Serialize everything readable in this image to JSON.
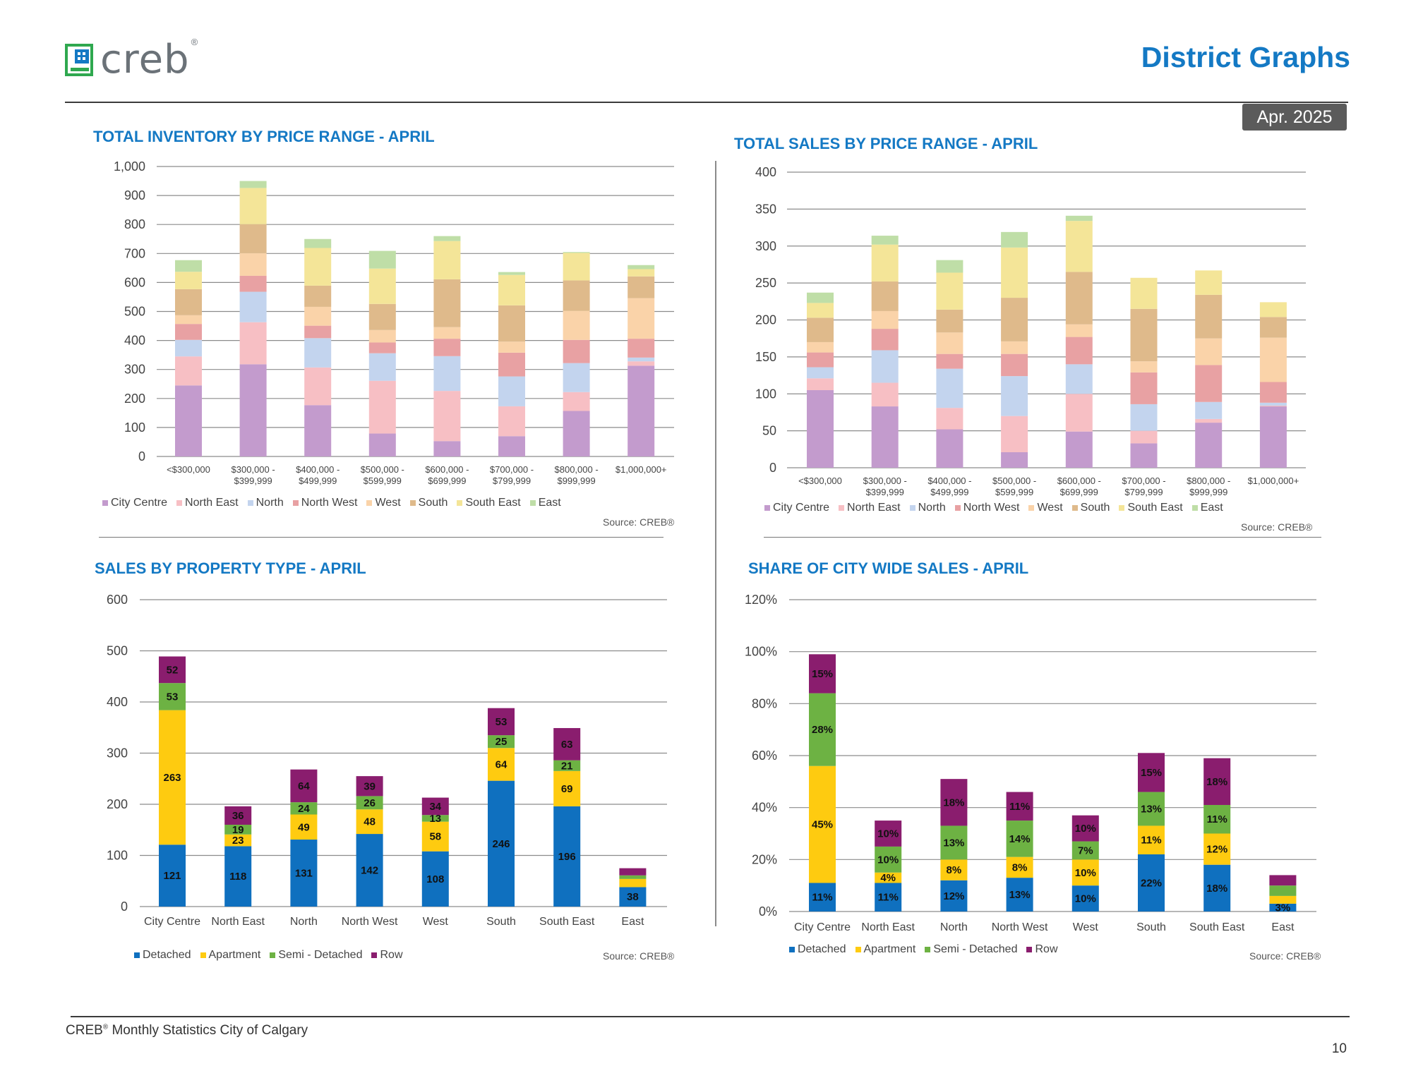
{
  "header": {
    "brand": "creb",
    "brand_mark": "®",
    "title": "District Graphs",
    "date_badge": "Apr. 2025"
  },
  "footer": {
    "text": "CREB",
    "reg": "®",
    "text_rest": " Monthly Statistics City of Calgary",
    "page_number": "10"
  },
  "colors": {
    "accent": "#1479c4",
    "city_centre": "#c39bcd",
    "north_east": "#f7bfc4",
    "north": "#c3d4ee",
    "north_west": "#e8a1a3",
    "west": "#fad3a9",
    "south": "#dfba8b",
    "south_east": "#f4e598",
    "east": "#bfdea7",
    "detached": "#0f70bf",
    "apartment": "#fecb10",
    "semi_detached": "#6db243",
    "row": "#8a1d6e"
  },
  "chart_data": [
    {
      "id": "inventory",
      "type": "bar",
      "stacked": true,
      "title": "TOTAL INVENTORY BY PRICE RANGE - APRIL",
      "source": "Source: CREB®",
      "ylim": [
        0,
        1000
      ],
      "yticks": [
        "0",
        "100",
        "200",
        "300",
        "400",
        "500",
        "600",
        "700",
        "800",
        "900",
        "1,000"
      ],
      "grid": true,
      "legend_position": "bottom",
      "categories": [
        [
          "<$300,000"
        ],
        [
          "$300,000 -",
          "$399,999"
        ],
        [
          "$400,000 -",
          "$499,999"
        ],
        [
          "$500,000 -",
          "$599,999"
        ],
        [
          "$600,000 -",
          "$699,999"
        ],
        [
          "$700,000 -",
          "$799,999"
        ],
        [
          "$800,000 -",
          "$999,999"
        ],
        [
          "$1,000,000+"
        ]
      ],
      "series": [
        {
          "name": "City Centre",
          "color": "#c39bcd",
          "values": [
            245,
            318,
            177,
            79,
            53,
            70,
            157,
            313
          ]
        },
        {
          "name": "North East",
          "color": "#f7bfc4",
          "values": [
            100,
            145,
            130,
            182,
            173,
            103,
            65,
            15
          ]
        },
        {
          "name": "North",
          "color": "#c3d4ee",
          "values": [
            57,
            105,
            101,
            95,
            120,
            103,
            100,
            13
          ]
        },
        {
          "name": "North West",
          "color": "#e8a1a3",
          "values": [
            55,
            55,
            43,
            37,
            60,
            82,
            80,
            65
          ]
        },
        {
          "name": "West",
          "color": "#fad3a9",
          "values": [
            30,
            78,
            65,
            43,
            40,
            38,
            100,
            140
          ]
        },
        {
          "name": "South",
          "color": "#dfba8b",
          "values": [
            90,
            100,
            73,
            90,
            165,
            125,
            105,
            75
          ]
        },
        {
          "name": "South East",
          "color": "#f4e598",
          "values": [
            60,
            125,
            130,
            122,
            132,
            105,
            95,
            25
          ]
        },
        {
          "name": "East",
          "color": "#bfdea7",
          "values": [
            40,
            24,
            31,
            61,
            17,
            10,
            3,
            14
          ]
        }
      ]
    },
    {
      "id": "sales",
      "type": "bar",
      "stacked": true,
      "title": "TOTAL SALES BY PRICE RANGE - APRIL",
      "source": "Source: CREB®",
      "ylim": [
        0,
        400
      ],
      "yticks": [
        "0",
        "50",
        "100",
        "150",
        "200",
        "250",
        "300",
        "350",
        "400"
      ],
      "grid": true,
      "legend_position": "bottom",
      "categories": [
        [
          "<$300,000"
        ],
        [
          "$300,000 -",
          "$399,999"
        ],
        [
          "$400,000 -",
          "$499,999"
        ],
        [
          "$500,000 -",
          "$599,999"
        ],
        [
          "$600,000 -",
          "$699,999"
        ],
        [
          "$700,000 -",
          "$799,999"
        ],
        [
          "$800,000 -",
          "$999,999"
        ],
        [
          "$1,000,000+"
        ]
      ],
      "series": [
        {
          "name": "City Centre",
          "color": "#c39bcd",
          "values": [
            105,
            83,
            52,
            21,
            49,
            33,
            61,
            83
          ]
        },
        {
          "name": "North East",
          "color": "#f7bfc4",
          "values": [
            16,
            32,
            29,
            49,
            51,
            17,
            5,
            1
          ]
        },
        {
          "name": "North",
          "color": "#c3d4ee",
          "values": [
            15,
            44,
            53,
            54,
            40,
            36,
            23,
            4
          ]
        },
        {
          "name": "North West",
          "color": "#e8a1a3",
          "values": [
            20,
            29,
            20,
            30,
            37,
            43,
            50,
            28
          ]
        },
        {
          "name": "West",
          "color": "#fad3a9",
          "values": [
            14,
            24,
            29,
            17,
            17,
            15,
            36,
            60
          ]
        },
        {
          "name": "South",
          "color": "#dfba8b",
          "values": [
            33,
            40,
            31,
            59,
            71,
            71,
            59,
            28
          ]
        },
        {
          "name": "South East",
          "color": "#f4e598",
          "values": [
            20,
            50,
            50,
            68,
            69,
            42,
            33,
            20
          ]
        },
        {
          "name": "East",
          "color": "#bfdea7",
          "values": [
            14,
            12,
            17,
            21,
            7,
            0,
            0,
            0
          ]
        }
      ]
    },
    {
      "id": "property",
      "type": "bar",
      "stacked": true,
      "title": "SALES BY PROPERTY TYPE - APRIL",
      "source": "Source: CREB®",
      "ylim": [
        0,
        600
      ],
      "yticks": [
        "0",
        "100",
        "200",
        "300",
        "400",
        "500",
        "600"
      ],
      "grid": true,
      "legend_position": "bottom",
      "categories": [
        [
          "City Centre"
        ],
        [
          "North East"
        ],
        [
          "North"
        ],
        [
          "North West"
        ],
        [
          "West"
        ],
        [
          "South"
        ],
        [
          "South East"
        ],
        [
          "East"
        ]
      ],
      "series": [
        {
          "name": "Detached",
          "color": "#0f70bf",
          "values": [
            121,
            118,
            131,
            142,
            108,
            246,
            196,
            38
          ],
          "labels": [
            "121",
            "118",
            "131",
            "142",
            "108",
            "246",
            "196",
            "38"
          ]
        },
        {
          "name": "Apartment",
          "color": "#fecb10",
          "values": [
            263,
            23,
            49,
            48,
            58,
            64,
            69,
            16
          ],
          "labels": [
            "263",
            "23",
            "49",
            "48",
            "58",
            "64",
            "69",
            ""
          ]
        },
        {
          "name": "Semi - Detached",
          "color": "#6db243",
          "values": [
            53,
            19,
            24,
            26,
            13,
            25,
            21,
            7
          ],
          "labels": [
            "53",
            "19",
            "24",
            "26",
            "13",
            "25",
            "21",
            ""
          ]
        },
        {
          "name": "Row",
          "color": "#8a1d6e",
          "values": [
            52,
            36,
            64,
            39,
            34,
            53,
            63,
            14
          ],
          "labels": [
            "52",
            "36",
            "64",
            "39",
            "34",
            "53",
            "63",
            ""
          ]
        }
      ]
    },
    {
      "id": "share",
      "type": "bar",
      "stacked": true,
      "title": "SHARE OF CITY WIDE SALES - APRIL",
      "source": "Source: CREB®",
      "ylim": [
        0,
        120
      ],
      "yticks": [
        "0%",
        "20%",
        "40%",
        "60%",
        "80%",
        "100%",
        "120%"
      ],
      "grid": true,
      "legend_position": "bottom",
      "categories": [
        [
          "City Centre"
        ],
        [
          "North East"
        ],
        [
          "North"
        ],
        [
          "North West"
        ],
        [
          "West"
        ],
        [
          "South"
        ],
        [
          "South East"
        ],
        [
          "East"
        ]
      ],
      "series": [
        {
          "name": "Detached",
          "color": "#0f70bf",
          "values": [
            11,
            11,
            12,
            13,
            10,
            22,
            18,
            3
          ],
          "labels": [
            "11%",
            "11%",
            "12%",
            "13%",
            "10%",
            "22%",
            "18%",
            "3%"
          ]
        },
        {
          "name": "Apartment",
          "color": "#fecb10",
          "values": [
            45,
            4,
            8,
            8,
            10,
            11,
            12,
            3
          ],
          "labels": [
            "45%",
            "4%",
            "8%",
            "8%",
            "10%",
            "11%",
            "12%",
            ""
          ]
        },
        {
          "name": "Semi - Detached",
          "color": "#6db243",
          "values": [
            28,
            10,
            13,
            14,
            7,
            13,
            11,
            4
          ],
          "labels": [
            "28%",
            "10%",
            "13%",
            "14%",
            "7%",
            "13%",
            "11%",
            ""
          ]
        },
        {
          "name": "Row",
          "color": "#8a1d6e",
          "values": [
            15,
            10,
            18,
            11,
            10,
            15,
            18,
            4
          ],
          "labels": [
            "15%",
            "10%",
            "18%",
            "11%",
            "10%",
            "15%",
            "18%",
            ""
          ]
        }
      ]
    }
  ]
}
